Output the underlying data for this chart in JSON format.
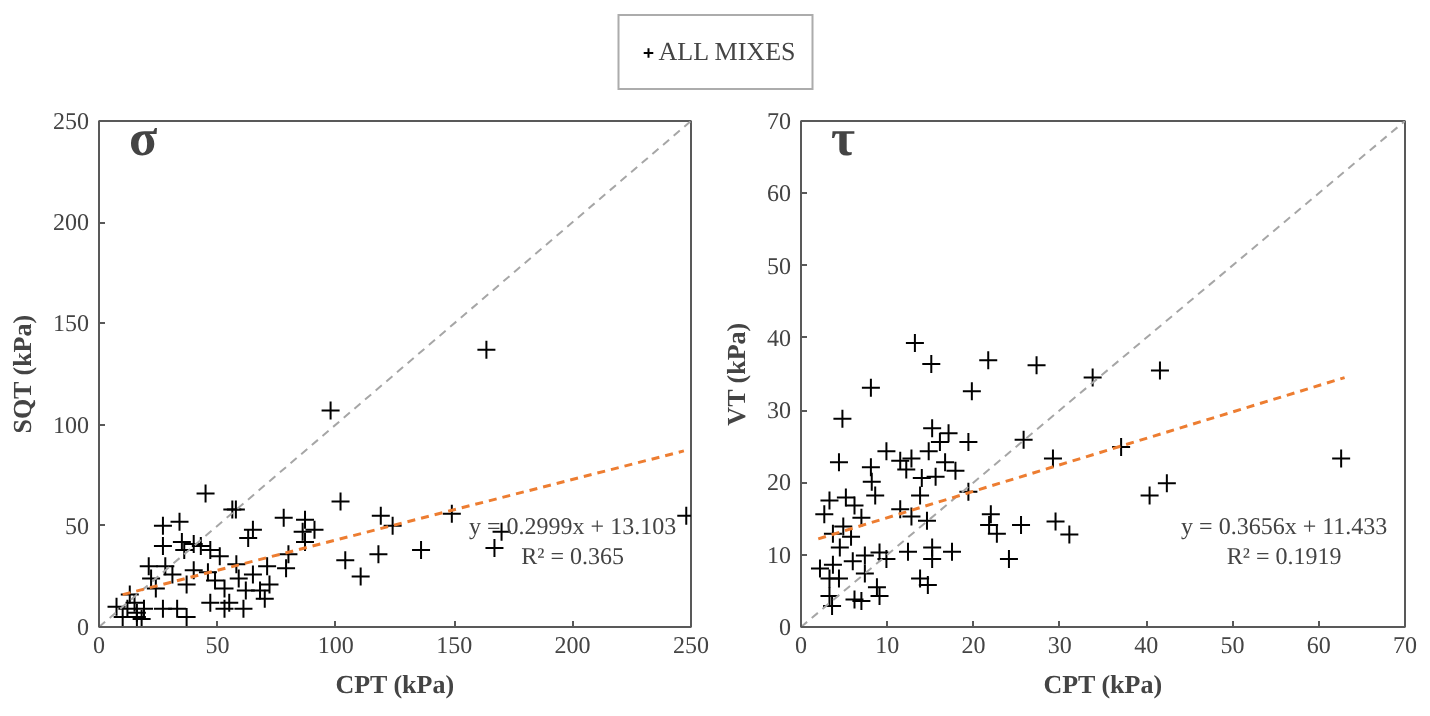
{
  "chart_data": [
    {
      "type": "scatter",
      "title": "σ",
      "xlabel": "CPT (kPa)",
      "ylabel": "SQT (kPa)",
      "xlim": [
        0,
        250
      ],
      "ylim": [
        0,
        250
      ],
      "xticks": [
        0,
        50,
        100,
        150,
        200,
        250
      ],
      "yticks": [
        0,
        50,
        100,
        150,
        200,
        250
      ],
      "grid": false,
      "legend": "top",
      "annotations": [
        "y = 0.2999x + 13.103",
        "R² = 0.365"
      ],
      "series": [
        {
          "name": "ALL MIXES",
          "color": "#000000",
          "marker": "cross",
          "x": [
            163.6,
            97.8,
            45,
            56.3,
            57.8,
            102,
            78,
            87,
            91,
            65,
            63,
            119,
            124,
            149,
            170,
            167,
            136,
            118,
            104,
            110.5,
            248,
            87,
            86,
            79,
            80,
            71,
            72,
            68,
            70,
            62,
            61,
            55,
            53,
            49,
            51,
            47,
            43,
            40,
            36,
            35,
            34,
            27,
            27,
            28,
            21,
            22,
            24,
            31,
            37,
            40,
            47,
            53,
            33,
            37,
            27,
            19,
            16,
            15,
            12,
            16,
            10,
            18,
            13,
            7.4,
            59,
            65,
            46,
            58
          ],
          "values": [
            137,
            107,
            66,
            58,
            58,
            62,
            54,
            53,
            48,
            48,
            44,
            55,
            50,
            56,
            47,
            39,
            38,
            36,
            33,
            25,
            55,
            42,
            47,
            29,
            36,
            30,
            21,
            18,
            14,
            18,
            9,
            12,
            19,
            23,
            35,
            38,
            40,
            41,
            38,
            42,
            52,
            50,
            40,
            30,
            30,
            24,
            19,
            26,
            21,
            28,
            12,
            9,
            9,
            5,
            9,
            9,
            7,
            12,
            9,
            5,
            5,
            4,
            16,
            10,
            24,
            26,
            27,
            31
          ]
        },
        {
          "type": "line",
          "color": "#a6a6a6",
          "line_style": "dashed",
          "x": [
            0,
            250
          ],
          "values": [
            0,
            250
          ]
        },
        {
          "type": "line",
          "color": "#ed7d31",
          "line_style": "dashed",
          "x": [
            10,
            247
          ],
          "values": [
            16,
            87
          ]
        }
      ]
    },
    {
      "type": "scatter",
      "title": "τ",
      "xlabel": "CPT (kPa)",
      "ylabel": "VT (kPa)",
      "xlim": [
        0,
        70
      ],
      "ylim": [
        0,
        70
      ],
      "xticks": [
        0,
        10,
        20,
        30,
        40,
        50,
        60,
        70
      ],
      "yticks": [
        0,
        10,
        20,
        30,
        40,
        50,
        60,
        70
      ],
      "grid": false,
      "annotations": [
        "y = 0.3656x + 11.433",
        "R² = 0.1919"
      ],
      "series": [
        {
          "color": "#000000",
          "marker": "cross",
          "x": [
            13.2,
            15.1,
            21.7,
            27.3,
            41.6,
            8.1,
            19.8,
            33.8,
            4.8,
            15.2,
            17.1,
            16.1,
            19.4,
            25.8,
            37.1,
            9.9,
            4.4,
            8.1,
            11.5,
            12.8,
            12.2,
            14.8,
            16.7,
            17.9,
            15.6,
            14.0,
            29.2,
            62.6,
            8.2,
            8.6,
            5.2,
            3.3,
            2.7,
            6.2,
            7.0,
            13.8,
            19.4,
            11.5,
            12.8,
            14.6,
            22,
            21.8,
            22.7,
            25.5,
            29.5,
            31.1,
            40.4,
            42.4,
            24.1,
            17.5,
            15.2,
            15.2,
            12.4,
            9.9,
            9.1,
            7.4,
            6,
            4.5,
            3.7,
            4.9,
            5.8,
            3.7,
            2.2,
            3.3,
            4.4,
            7.4,
            13.8,
            14.7,
            8.8,
            6.2,
            7.0,
            3.3,
            3.6,
            9.1
          ],
          "values": [
            39.3,
            36.4,
            36.9,
            36.2,
            35.5,
            33.1,
            32.6,
            34.5,
            28.8,
            27.5,
            26.8,
            25.6,
            25.6,
            25.9,
            24.9,
            24.3,
            22.8,
            22.1,
            23.0,
            23.3,
            21.8,
            24.3,
            22.8,
            21.6,
            20.8,
            20.6,
            23.3,
            23.3,
            20.1,
            18.2,
            17.9,
            17.5,
            15.6,
            16.8,
            15.1,
            18.2,
            18.7,
            16.3,
            15.3,
            14.7,
            15.6,
            14.1,
            12.9,
            14.1,
            14.6,
            12.8,
            18.2,
            19.9,
            9.4,
            10.4,
            11.0,
            9.4,
            10.4,
            9.4,
            10.3,
            9.9,
            9.1,
            11,
            12.9,
            13.9,
            12.5,
            8.6,
            8.1,
            6.7,
            6.7,
            7.4,
            6.7,
            5.8,
            5.5,
            3.8,
            3.6,
            4.3,
            2.9,
            4.3
          ]
        },
        {
          "type": "line",
          "color": "#a6a6a6",
          "line_style": "dashed",
          "x": [
            0,
            70
          ],
          "values": [
            0,
            70
          ]
        },
        {
          "type": "line",
          "color": "#ed7d31",
          "line_style": "dashed",
          "x": [
            2,
            63
          ],
          "values": [
            12.2,
            34.5
          ]
        }
      ]
    }
  ]
}
